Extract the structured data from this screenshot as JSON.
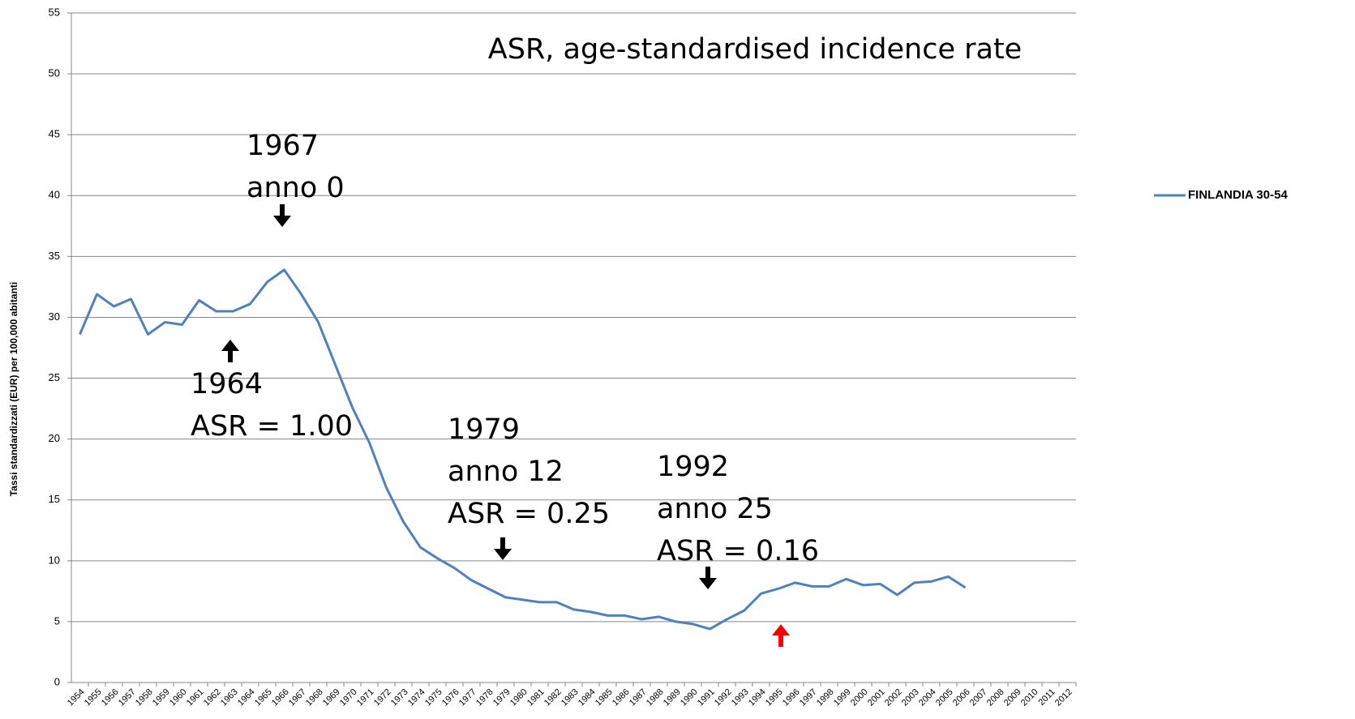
{
  "chart_data": {
    "type": "line",
    "title": "ASR, age-standardised incidence rate",
    "y_label": "Tassi standardizzati (EUR) per 100,000 abitanti",
    "categories": [
      "1954",
      "1955",
      "1956",
      "1957",
      "1958",
      "1959",
      "1960",
      "1961",
      "1962",
      "1963",
      "1964",
      "1965",
      "1966",
      "1967",
      "1968",
      "1969",
      "1970",
      "1971",
      "1972",
      "1973",
      "1974",
      "1975",
      "1976",
      "1977",
      "1978",
      "1979",
      "1980",
      "1981",
      "1982",
      "1983",
      "1984",
      "1985",
      "1986",
      "1987",
      "1988",
      "1989",
      "1990",
      "1991",
      "1992",
      "1993",
      "1994",
      "1995",
      "1996",
      "1997",
      "1998",
      "1999",
      "2000",
      "2001",
      "2002",
      "2003",
      "2004",
      "2005",
      "2006",
      "2007",
      "2008",
      "2009",
      "2010",
      "2011",
      "2012"
    ],
    "series": [
      {
        "name": "FINLANDIA 30-54",
        "color": "#4f81bd",
        "values": [
          28.6,
          31.9,
          30.9,
          31.5,
          28.6,
          29.6,
          29.4,
          31.4,
          30.5,
          30.5,
          31.1,
          32.9,
          33.9,
          31.9,
          29.6,
          26.1,
          22.6,
          19.7,
          16.0,
          13.2,
          11.1,
          10.2,
          9.4,
          8.4,
          7.7,
          7.0,
          6.8,
          6.6,
          6.6,
          6.0,
          5.8,
          5.5,
          5.5,
          5.2,
          5.4,
          5.0,
          4.8,
          4.4,
          5.2,
          5.9,
          7.3,
          7.7,
          8.2,
          7.9,
          7.9,
          8.5,
          8.0,
          8.1,
          7.2,
          8.2,
          8.3,
          8.7,
          7.8,
          null,
          null,
          null,
          null,
          null,
          null
        ]
      }
    ],
    "ylim": [
      0,
      55
    ],
    "yticks": [
      0,
      5,
      10,
      15,
      20,
      25,
      30,
      35,
      40,
      45,
      50,
      55
    ],
    "grid": true,
    "legend": "right",
    "annotations": [
      {
        "lines": [
          "1967",
          "anno 0"
        ]
      },
      {
        "lines": [
          "1964",
          "ASR = 1.00"
        ]
      },
      {
        "lines": [
          "1979",
          "anno 12",
          "ASR = 0.25"
        ]
      },
      {
        "lines": [
          "1992",
          "anno 25",
          "ASR = 0.16"
        ]
      }
    ]
  }
}
